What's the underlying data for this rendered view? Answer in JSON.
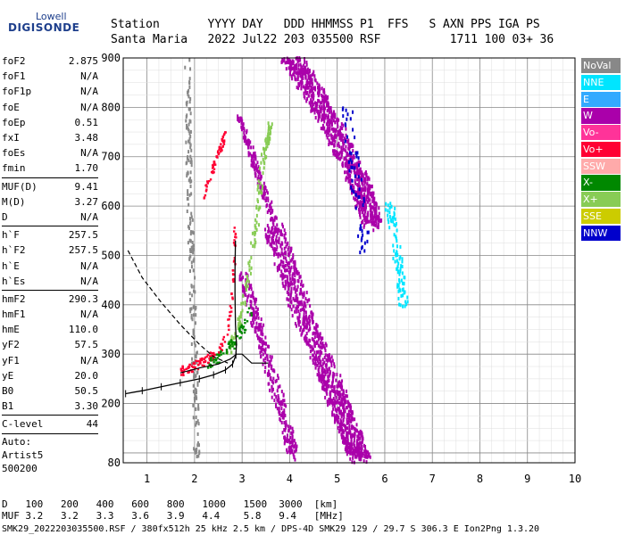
{
  "logo": {
    "line1": "Lowell",
    "line2": "DIGISONDE"
  },
  "header": {
    "labels": [
      "Station",
      "YYYY",
      "DAY",
      "DDD",
      "HHMMSS",
      "P1",
      "FFS",
      "S",
      "AXN",
      "PPS",
      "IGA",
      "PS"
    ],
    "values": [
      "Santa Maria",
      "2022",
      "Jul22",
      "203",
      "035500",
      "RSF",
      "",
      "1",
      "711",
      "100",
      "03+",
      "36"
    ]
  },
  "params": [
    {
      "type": "row",
      "label": "foF2",
      "value": "2.875"
    },
    {
      "type": "row",
      "label": "foF1",
      "value": "N/A"
    },
    {
      "type": "row",
      "label": "foF1p",
      "value": "N/A"
    },
    {
      "type": "row",
      "label": "foE",
      "value": "N/A"
    },
    {
      "type": "row",
      "label": "foEp",
      "value": "0.51"
    },
    {
      "type": "row",
      "label": "fxI",
      "value": "3.48"
    },
    {
      "type": "row",
      "label": "foEs",
      "value": "N/A"
    },
    {
      "type": "row",
      "label": "fmin",
      "value": "1.70"
    },
    {
      "type": "div"
    },
    {
      "type": "row",
      "label": "MUF(D)",
      "value": "9.41"
    },
    {
      "type": "row",
      "label": "M(D)",
      "value": "3.27"
    },
    {
      "type": "row",
      "label": "D",
      "value": "N/A"
    },
    {
      "type": "div"
    },
    {
      "type": "row",
      "label": "h`F",
      "value": "257.5"
    },
    {
      "type": "row",
      "label": "h`F2",
      "value": "257.5"
    },
    {
      "type": "row",
      "label": "h`E",
      "value": "N/A"
    },
    {
      "type": "row",
      "label": "h`Es",
      "value": "N/A"
    },
    {
      "type": "div"
    },
    {
      "type": "row",
      "label": "hmF2",
      "value": "290.3"
    },
    {
      "type": "row",
      "label": "hmF1",
      "value": "N/A"
    },
    {
      "type": "row",
      "label": "hmE",
      "value": "110.0"
    },
    {
      "type": "row",
      "label": "yF2",
      "value": "57.5"
    },
    {
      "type": "row",
      "label": "yF1",
      "value": "N/A"
    },
    {
      "type": "row",
      "label": "yE",
      "value": "20.0"
    },
    {
      "type": "row",
      "label": "B0",
      "value": "50.5"
    },
    {
      "type": "row",
      "label": "B1",
      "value": "3.30"
    },
    {
      "type": "div"
    },
    {
      "type": "row",
      "label": "C-level",
      "value": "44"
    },
    {
      "type": "div"
    },
    {
      "type": "text",
      "text": "Auto:"
    },
    {
      "type": "text",
      "text": "Artist5"
    },
    {
      "type": "text",
      "text": "500200"
    }
  ],
  "legend": [
    {
      "label": "NoVal",
      "color": "#888888"
    },
    {
      "label": "NNE",
      "color": "#00e5ff"
    },
    {
      "label": "E",
      "color": "#33aaff"
    },
    {
      "label": "W",
      "color": "#aa00aa"
    },
    {
      "label": "Vo-",
      "color": "#ff3399"
    },
    {
      "label": "Vo+",
      "color": "#ff0033"
    },
    {
      "label": "SSW",
      "color": "#ffaaaa"
    },
    {
      "label": "X-",
      "color": "#008800"
    },
    {
      "label": "X+",
      "color": "#88cc55"
    },
    {
      "label": "SSE",
      "color": "#cccc00"
    },
    {
      "label": "NNW",
      "color": "#0000cc"
    }
  ],
  "muf_table": {
    "d_label": "D",
    "d_values": [
      "100",
      "200",
      "400",
      "600",
      "800",
      "1000",
      "1500",
      "3000"
    ],
    "d_unit": "[km]",
    "muf_label": "MUF",
    "muf_values": [
      "3.2",
      "3.2",
      "3.3",
      "3.6",
      "3.9",
      "4.4",
      "5.8",
      "9.4"
    ],
    "muf_unit": "[MHz]"
  },
  "footer": "SMK29_2022203035500.RSF / 380fx512h 25 kHz 2.5 km / DPS-4D SMK29 129 / 29.7 S 306.3 E Ion2Png 1.3.20",
  "chart_data": {
    "type": "scatter",
    "xlim": [
      0.5,
      10
    ],
    "ylim": [
      80,
      900
    ],
    "x_ticks": [
      1,
      2,
      3,
      4,
      5,
      6,
      7,
      8,
      9,
      10
    ],
    "y_ticks": [
      80,
      200,
      300,
      400,
      500,
      600,
      700,
      800,
      900
    ],
    "grid": true,
    "series": [
      {
        "name": "W",
        "color": "#aa00aa",
        "kind": "band",
        "points": [
          [
            4.05,
            900
          ],
          [
            4.5,
            830
          ],
          [
            5.0,
            740
          ],
          [
            5.5,
            640
          ],
          [
            5.75,
            560
          ]
        ],
        "width": 0.45,
        "density": 900
      },
      {
        "name": "W",
        "color": "#aa00aa",
        "kind": "band",
        "points": [
          [
            3.65,
            560
          ],
          [
            4.2,
            400
          ],
          [
            4.8,
            260
          ],
          [
            5.2,
            160
          ],
          [
            5.5,
            85
          ]
        ],
        "width": 0.45,
        "density": 1000
      },
      {
        "name": "W",
        "color": "#aa00aa",
        "kind": "band",
        "points": [
          [
            3.0,
            470
          ],
          [
            3.4,
            330
          ],
          [
            3.8,
            200
          ],
          [
            4.1,
            90
          ]
        ],
        "width": 0.22,
        "density": 300
      },
      {
        "name": "W",
        "color": "#aa00aa",
        "kind": "band",
        "points": [
          [
            2.95,
            780
          ],
          [
            3.35,
            660
          ],
          [
            3.7,
            560
          ]
        ],
        "width": 0.12,
        "density": 150
      },
      {
        "name": "NoVal",
        "color": "#888888",
        "kind": "band",
        "points": [
          [
            1.85,
            900
          ],
          [
            1.9,
            600
          ],
          [
            2.0,
            300
          ],
          [
            2.05,
            90
          ]
        ],
        "width": 0.12,
        "density": 200
      },
      {
        "name": "X+",
        "color": "#88cc55",
        "kind": "band",
        "points": [
          [
            2.7,
            300
          ],
          [
            3.0,
            380
          ],
          [
            3.3,
            560
          ],
          [
            3.45,
            700
          ],
          [
            3.6,
            760
          ]
        ],
        "width": 0.1,
        "density": 140
      },
      {
        "name": "NNE",
        "color": "#00e5ff",
        "kind": "band",
        "points": [
          [
            6.1,
            600
          ],
          [
            6.3,
            480
          ],
          [
            6.4,
            400
          ]
        ],
        "width": 0.18,
        "density": 90
      },
      {
        "name": "NNW",
        "color": "#0000cc",
        "kind": "band",
        "points": [
          [
            5.2,
            800
          ],
          [
            5.4,
            650
          ],
          [
            5.6,
            500
          ]
        ],
        "width": 0.25,
        "density": 60
      },
      {
        "name": "Vo+",
        "color": "#ff0033",
        "kind": "trace",
        "points": [
          [
            1.7,
            265
          ],
          [
            1.9,
            270
          ],
          [
            2.1,
            280
          ],
          [
            2.3,
            290
          ],
          [
            2.5,
            305
          ],
          [
            2.65,
            330
          ],
          [
            2.75,
            380
          ],
          [
            2.82,
            460
          ],
          [
            2.85,
            550
          ]
        ],
        "width": 0.05,
        "density": 120
      },
      {
        "name": "Vo+",
        "color": "#ff0033",
        "kind": "trace",
        "points": [
          [
            2.2,
            620
          ],
          [
            2.4,
            680
          ],
          [
            2.55,
            720
          ],
          [
            2.65,
            745
          ]
        ],
        "width": 0.04,
        "density": 60
      },
      {
        "name": "X-",
        "color": "#008800",
        "kind": "trace",
        "points": [
          [
            2.3,
            280
          ],
          [
            2.6,
            300
          ],
          [
            2.9,
            330
          ],
          [
            3.2,
            390
          ]
        ],
        "width": 0.08,
        "density": 70
      }
    ],
    "profile_curve": [
      [
        0.55,
        220
      ],
      [
        0.9,
        226
      ],
      [
        1.3,
        234
      ],
      [
        1.7,
        242
      ],
      [
        2.1,
        250
      ],
      [
        2.4,
        258
      ],
      [
        2.65,
        268
      ],
      [
        2.8,
        280
      ],
      [
        2.87,
        298
      ],
      [
        2.88,
        320
      ],
      [
        2.86,
        360
      ],
      [
        2.85,
        420
      ],
      [
        2.85,
        470
      ],
      [
        2.86,
        530
      ]
    ],
    "dashed_curve": [
      [
        0.6,
        510
      ],
      [
        0.9,
        455
      ],
      [
        1.3,
        405
      ],
      [
        1.7,
        360
      ],
      [
        2.1,
        320
      ],
      [
        2.4,
        295
      ],
      [
        2.7,
        282
      ]
    ],
    "muf_curve": [
      [
        1.7,
        262
      ],
      [
        2.1,
        272
      ],
      [
        2.5,
        280
      ],
      [
        2.75,
        290
      ],
      [
        2.88,
        300
      ],
      [
        3.0,
        300
      ],
      [
        3.2,
        282
      ],
      [
        3.55,
        282
      ]
    ]
  }
}
